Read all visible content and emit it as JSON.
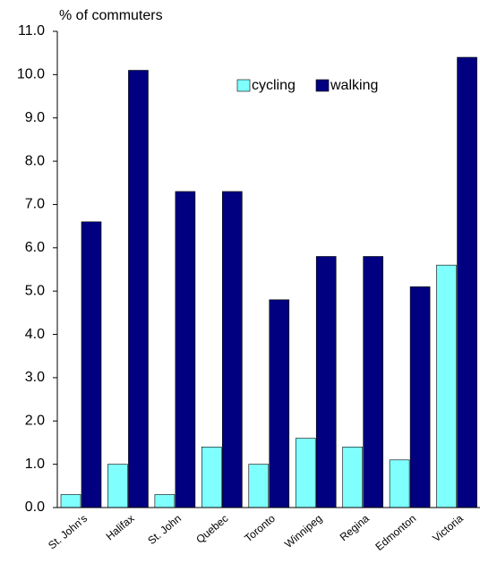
{
  "chart_data": {
    "type": "bar",
    "y_axis_label": "% of commuters",
    "categories": [
      "St. John's",
      "Halifax",
      "St. John",
      "Quebec",
      "Toronto",
      "Winnipeg",
      "Regina",
      "Edmonton",
      "Victoria"
    ],
    "series": [
      {
        "name": "cycling",
        "color": "#80ffff",
        "values": [
          0.3,
          1.0,
          0.3,
          1.4,
          1.0,
          1.6,
          1.4,
          1.1,
          5.6
        ]
      },
      {
        "name": "walking",
        "color": "#000080",
        "values": [
          6.6,
          10.1,
          7.3,
          7.3,
          4.8,
          5.8,
          5.8,
          5.1,
          10.4
        ]
      }
    ],
    "ylim": [
      0,
      11
    ],
    "yticks": [
      {
        "value": 0,
        "label": "0.0"
      },
      {
        "value": 1,
        "label": "1.0"
      },
      {
        "value": 2,
        "label": "2.0"
      },
      {
        "value": 3,
        "label": "3.0"
      },
      {
        "value": 4,
        "label": "4.0"
      },
      {
        "value": 5,
        "label": "5.0"
      },
      {
        "value": 6,
        "label": "6.0"
      },
      {
        "value": 7,
        "label": "7.0"
      },
      {
        "value": 8,
        "label": "8.0"
      },
      {
        "value": 9,
        "label": "9.0"
      },
      {
        "value": 10,
        "label": "10.0"
      },
      {
        "value": 11,
        "label": "11.0"
      }
    ],
    "legend": "top"
  }
}
